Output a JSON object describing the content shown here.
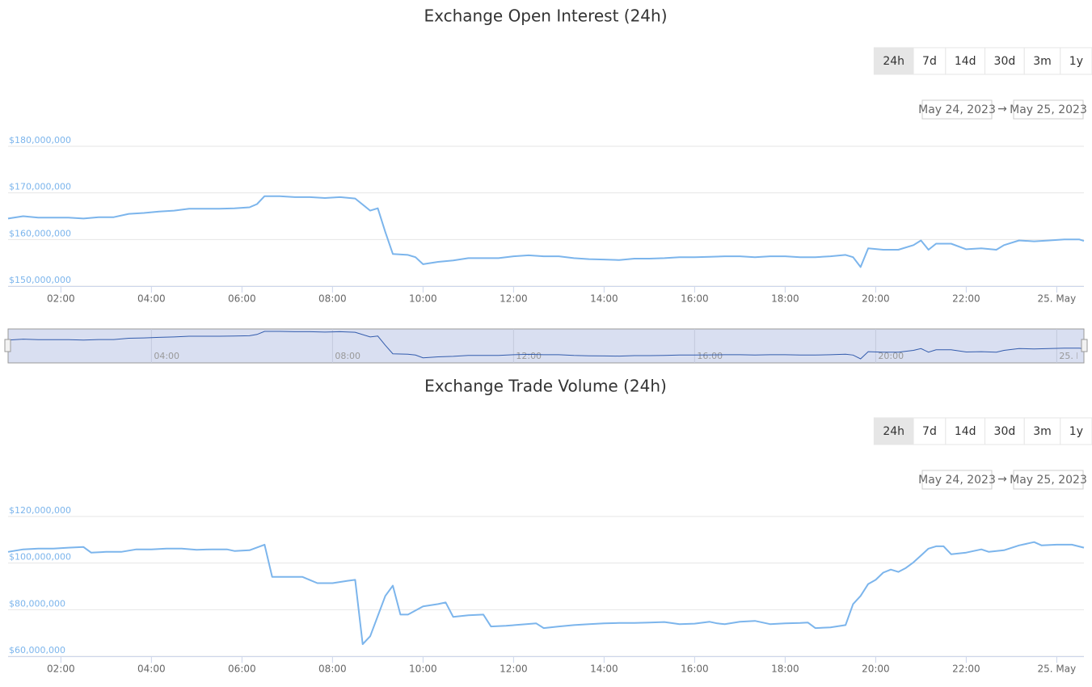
{
  "chart_data": [
    {
      "type": "line",
      "title": "Exchange Open Interest (24h)",
      "range_buttons": [
        "24h",
        "7d",
        "14d",
        "30d",
        "3m",
        "1y"
      ],
      "selected_range": "24h",
      "date_from": "May 24, 2023",
      "date_separator": "→",
      "date_to": "May 25, 2023",
      "color": "#7cb5ec",
      "grid": true,
      "navigator": true,
      "xlim": [
        "2023-05-24T00:50",
        "2023-05-25T00:36"
      ],
      "xticks": [
        {
          "value": "2023-05-24T02:00",
          "label": "02:00"
        },
        {
          "value": "2023-05-24T04:00",
          "label": "04:00"
        },
        {
          "value": "2023-05-24T06:00",
          "label": "06:00"
        },
        {
          "value": "2023-05-24T08:00",
          "label": "08:00"
        },
        {
          "value": "2023-05-24T10:00",
          "label": "10:00"
        },
        {
          "value": "2023-05-24T12:00",
          "label": "12:00"
        },
        {
          "value": "2023-05-24T14:00",
          "label": "14:00"
        },
        {
          "value": "2023-05-24T16:00",
          "label": "16:00"
        },
        {
          "value": "2023-05-24T18:00",
          "label": "18:00"
        },
        {
          "value": "2023-05-24T20:00",
          "label": "20:00"
        },
        {
          "value": "2023-05-24T22:00",
          "label": "22:00"
        },
        {
          "value": "2023-05-25T00:00",
          "label": "25. May"
        }
      ],
      "ylim": [
        150000000,
        180000000
      ],
      "yticks": [
        {
          "value": 150000000,
          "label": "$150,000,000"
        },
        {
          "value": 160000000,
          "label": "$160,000,000"
        },
        {
          "value": 170000000,
          "label": "$170,000,000"
        },
        {
          "value": 180000000,
          "label": "$180,000,000"
        }
      ],
      "x": [
        "2023-05-24T00:50",
        "2023-05-24T01:10",
        "2023-05-24T01:30",
        "2023-05-24T01:50",
        "2023-05-24T02:10",
        "2023-05-24T02:30",
        "2023-05-24T02:50",
        "2023-05-24T03:10",
        "2023-05-24T03:30",
        "2023-05-24T03:50",
        "2023-05-24T04:10",
        "2023-05-24T04:30",
        "2023-05-24T04:50",
        "2023-05-24T05:10",
        "2023-05-24T05:30",
        "2023-05-24T05:50",
        "2023-05-24T06:10",
        "2023-05-24T06:20",
        "2023-05-24T06:30",
        "2023-05-24T06:50",
        "2023-05-24T07:10",
        "2023-05-24T07:30",
        "2023-05-24T07:50",
        "2023-05-24T08:10",
        "2023-05-24T08:30",
        "2023-05-24T08:50",
        "2023-05-24T09:00",
        "2023-05-24T09:10",
        "2023-05-24T09:20",
        "2023-05-24T09:40",
        "2023-05-24T09:50",
        "2023-05-24T10:00",
        "2023-05-24T10:20",
        "2023-05-24T10:40",
        "2023-05-24T11:00",
        "2023-05-24T11:20",
        "2023-05-24T11:40",
        "2023-05-24T12:00",
        "2023-05-24T12:20",
        "2023-05-24T12:40",
        "2023-05-24T13:00",
        "2023-05-24T13:20",
        "2023-05-24T13:40",
        "2023-05-24T14:00",
        "2023-05-24T14:20",
        "2023-05-24T14:40",
        "2023-05-24T15:00",
        "2023-05-24T15:20",
        "2023-05-24T15:40",
        "2023-05-24T16:00",
        "2023-05-24T16:20",
        "2023-05-24T16:40",
        "2023-05-24T17:00",
        "2023-05-24T17:20",
        "2023-05-24T17:40",
        "2023-05-24T18:00",
        "2023-05-24T18:20",
        "2023-05-24T18:40",
        "2023-05-24T19:00",
        "2023-05-24T19:20",
        "2023-05-24T19:30",
        "2023-05-24T19:40",
        "2023-05-24T19:50",
        "2023-05-24T20:10",
        "2023-05-24T20:30",
        "2023-05-24T20:50",
        "2023-05-24T21:00",
        "2023-05-24T21:10",
        "2023-05-24T21:20",
        "2023-05-24T21:40",
        "2023-05-24T22:00",
        "2023-05-24T22:20",
        "2023-05-24T22:40",
        "2023-05-24T22:50",
        "2023-05-24T23:10",
        "2023-05-24T23:30",
        "2023-05-24T23:50",
        "2023-05-25T00:10",
        "2023-05-25T00:30",
        "2023-05-25T00:36"
      ],
      "values": [
        164500000,
        165000000,
        164700000,
        164700000,
        164700000,
        164500000,
        164800000,
        164800000,
        165500000,
        165700000,
        166000000,
        166200000,
        166600000,
        166600000,
        166600000,
        166700000,
        166900000,
        167600000,
        169300000,
        169300000,
        169100000,
        169100000,
        168900000,
        169100000,
        168800000,
        166200000,
        166700000,
        161600000,
        156900000,
        156700000,
        156200000,
        154700000,
        155200000,
        155500000,
        156000000,
        156000000,
        156000000,
        156400000,
        156600000,
        156400000,
        156400000,
        156000000,
        155800000,
        155700000,
        155600000,
        155900000,
        155900000,
        156000000,
        156200000,
        156200000,
        156300000,
        156400000,
        156400000,
        156200000,
        156400000,
        156400000,
        156200000,
        156200000,
        156400000,
        156700000,
        156200000,
        154100000,
        158100000,
        157800000,
        157800000,
        158800000,
        159800000,
        157800000,
        159100000,
        159100000,
        157900000,
        158100000,
        157800000,
        158800000,
        159800000,
        159600000,
        159800000,
        160000000,
        160000000,
        159700000
      ]
    },
    {
      "type": "line",
      "title": "Exchange Trade Volume (24h)",
      "range_buttons": [
        "24h",
        "7d",
        "14d",
        "30d",
        "3m",
        "1y"
      ],
      "selected_range": "24h",
      "date_from": "May 24, 2023",
      "date_separator": "→",
      "date_to": "May 25, 2023",
      "color": "#7cb5ec",
      "grid": true,
      "navigator": false,
      "xlim": [
        "2023-05-24T00:50",
        "2023-05-25T00:36"
      ],
      "xticks": [
        {
          "value": "2023-05-24T02:00",
          "label": "02:00"
        },
        {
          "value": "2023-05-24T04:00",
          "label": "04:00"
        },
        {
          "value": "2023-05-24T06:00",
          "label": "06:00"
        },
        {
          "value": "2023-05-24T08:00",
          "label": "08:00"
        },
        {
          "value": "2023-05-24T10:00",
          "label": "10:00"
        },
        {
          "value": "2023-05-24T12:00",
          "label": "12:00"
        },
        {
          "value": "2023-05-24T14:00",
          "label": "14:00"
        },
        {
          "value": "2023-05-24T16:00",
          "label": "16:00"
        },
        {
          "value": "2023-05-24T18:00",
          "label": "18:00"
        },
        {
          "value": "2023-05-24T20:00",
          "label": "20:00"
        },
        {
          "value": "2023-05-24T22:00",
          "label": "22:00"
        },
        {
          "value": "2023-05-25T00:00",
          "label": "25. May"
        }
      ],
      "ylim": [
        60000000,
        120000000
      ],
      "yticks": [
        {
          "value": 60000000,
          "label": "$60,000,000"
        },
        {
          "value": 80000000,
          "label": "$80,000,000"
        },
        {
          "value": 100000000,
          "label": "$100,000,000"
        },
        {
          "value": 120000000,
          "label": "$120,000,000"
        }
      ],
      "x": [
        "2023-05-24T00:50",
        "2023-05-24T01:10",
        "2023-05-24T01:30",
        "2023-05-24T01:50",
        "2023-05-24T02:10",
        "2023-05-24T02:30",
        "2023-05-24T02:40",
        "2023-05-24T03:00",
        "2023-05-24T03:20",
        "2023-05-24T03:40",
        "2023-05-24T04:00",
        "2023-05-24T04:20",
        "2023-05-24T04:40",
        "2023-05-24T05:00",
        "2023-05-24T05:20",
        "2023-05-24T05:40",
        "2023-05-24T05:50",
        "2023-05-24T06:10",
        "2023-05-24T06:30",
        "2023-05-24T06:40",
        "2023-05-24T07:00",
        "2023-05-24T07:20",
        "2023-05-24T07:40",
        "2023-05-24T08:00",
        "2023-05-24T08:20",
        "2023-05-24T08:30",
        "2023-05-24T08:40",
        "2023-05-24T08:50",
        "2023-05-24T09:10",
        "2023-05-24T09:20",
        "2023-05-24T09:30",
        "2023-05-24T09:40",
        "2023-05-24T10:00",
        "2023-05-24T10:20",
        "2023-05-24T10:30",
        "2023-05-24T10:40",
        "2023-05-24T11:00",
        "2023-05-24T11:20",
        "2023-05-24T11:30",
        "2023-05-24T11:50",
        "2023-05-24T12:10",
        "2023-05-24T12:30",
        "2023-05-24T12:40",
        "2023-05-24T13:00",
        "2023-05-24T13:20",
        "2023-05-24T13:40",
        "2023-05-24T14:00",
        "2023-05-24T14:20",
        "2023-05-24T14:40",
        "2023-05-24T15:00",
        "2023-05-24T15:20",
        "2023-05-24T15:40",
        "2023-05-24T16:00",
        "2023-05-24T16:20",
        "2023-05-24T16:30",
        "2023-05-24T16:40",
        "2023-05-24T17:00",
        "2023-05-24T17:20",
        "2023-05-24T17:40",
        "2023-05-24T18:00",
        "2023-05-24T18:20",
        "2023-05-24T18:30",
        "2023-05-24T18:40",
        "2023-05-24T19:00",
        "2023-05-24T19:20",
        "2023-05-24T19:30",
        "2023-05-24T19:40",
        "2023-05-24T19:50",
        "2023-05-24T20:00",
        "2023-05-24T20:10",
        "2023-05-24T20:20",
        "2023-05-24T20:30",
        "2023-05-24T20:40",
        "2023-05-24T20:50",
        "2023-05-24T21:10",
        "2023-05-24T21:20",
        "2023-05-24T21:30",
        "2023-05-24T21:40",
        "2023-05-24T22:00",
        "2023-05-24T22:20",
        "2023-05-24T22:30",
        "2023-05-24T22:50",
        "2023-05-24T23:10",
        "2023-05-24T23:30",
        "2023-05-24T23:40",
        "2023-05-25T00:00",
        "2023-05-25T00:20",
        "2023-05-25T00:36"
      ],
      "values": [
        104800000,
        105900000,
        106200000,
        106200000,
        106600000,
        106900000,
        104500000,
        104800000,
        104800000,
        105900000,
        105900000,
        106200000,
        106200000,
        105700000,
        105900000,
        105900000,
        105200000,
        105500000,
        107900000,
        94100000,
        94100000,
        94100000,
        91400000,
        91400000,
        92400000,
        92800000,
        65200000,
        68600000,
        85900000,
        90300000,
        77900000,
        77900000,
        81400000,
        82400000,
        83100000,
        76900000,
        77600000,
        77900000,
        72800000,
        73100000,
        73600000,
        74100000,
        72100000,
        72800000,
        73400000,
        73800000,
        74100000,
        74300000,
        74300000,
        74500000,
        74700000,
        73800000,
        74000000,
        74800000,
        74100000,
        73800000,
        74800000,
        75200000,
        73800000,
        74100000,
        74300000,
        74500000,
        72100000,
        72400000,
        73400000,
        82400000,
        85900000,
        91000000,
        92800000,
        95900000,
        97200000,
        96200000,
        97900000,
        100300000,
        106200000,
        107200000,
        107200000,
        103800000,
        104500000,
        105900000,
        104800000,
        105500000,
        107600000,
        109000000,
        107600000,
        107900000,
        107900000,
        106600000
      ]
    }
  ]
}
